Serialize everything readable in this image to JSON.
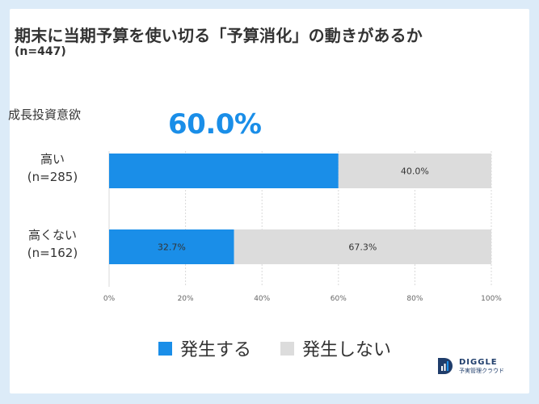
{
  "title": "期末に当期予算を使い切る「予算消化」の動きがあるか",
  "sample_size": "(n=447)",
  "group_label": "成長投資意欲",
  "highlight_value": "60.0%",
  "colors": {
    "series_1": "#1a8ee8",
    "series_2": "#dcdcdc",
    "background": "#dcebf8"
  },
  "brand": {
    "name": "DIGGLE",
    "tagline": "予実管理クラウド"
  },
  "chart_data": {
    "type": "bar",
    "orientation": "horizontal",
    "stacked": true,
    "categories": [
      {
        "line1": "高い",
        "line2": "(n=285)"
      },
      {
        "line1": "高くない",
        "line2": "(n=162)"
      }
    ],
    "series": [
      {
        "name": "発生する",
        "values": [
          60.0,
          32.7
        ],
        "labels": [
          "",
          "32.7%"
        ]
      },
      {
        "name": "発生しない",
        "values": [
          40.0,
          67.3
        ],
        "labels": [
          "40.0%",
          "67.3%"
        ]
      }
    ],
    "xlim": [
      0,
      100
    ],
    "xticks": [
      "0%",
      "20%",
      "40%",
      "60%",
      "80%",
      "100%"
    ],
    "grid": true,
    "legend": "bottom"
  }
}
